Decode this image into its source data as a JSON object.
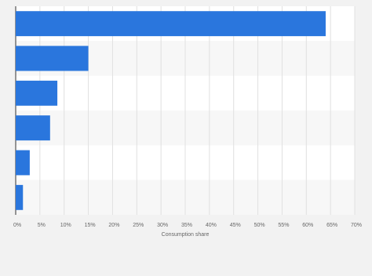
{
  "chart_data": {
    "type": "bar",
    "orientation": "horizontal",
    "x_label": "Consumption share",
    "categories": [
      null,
      null,
      null,
      null,
      null,
      null
    ],
    "values": [
      64,
      15,
      8.6,
      7.1,
      2.9,
      1.5
    ],
    "color": "#2a76dd",
    "xlim": [
      0,
      70
    ],
    "xticks": [
      {
        "value": 0,
        "label": "0%"
      },
      {
        "value": 5,
        "label": "5%"
      },
      {
        "value": 10,
        "label": "10%"
      },
      {
        "value": 15,
        "label": "15%"
      },
      {
        "value": 20,
        "label": "20%"
      },
      {
        "value": 25,
        "label": "25%"
      },
      {
        "value": 30,
        "label": "30%"
      },
      {
        "value": 35,
        "label": "35%"
      },
      {
        "value": 40,
        "label": "40%"
      },
      {
        "value": 45,
        "label": "45%"
      },
      {
        "value": 50,
        "label": "50%"
      },
      {
        "value": 55,
        "label": "55%"
      },
      {
        "value": 60,
        "label": "60%"
      },
      {
        "value": 65,
        "label": "65%"
      },
      {
        "value": 70,
        "label": "70%"
      }
    ],
    "grid": true
  }
}
